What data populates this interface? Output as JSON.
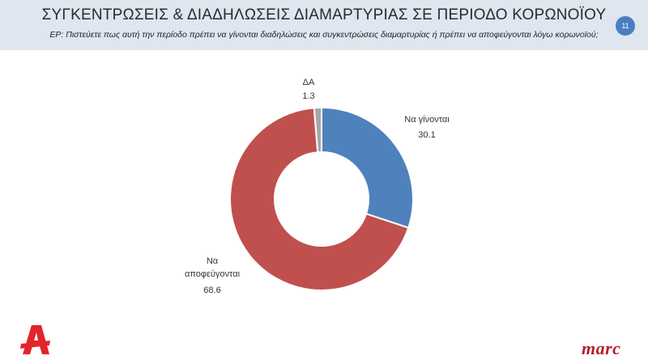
{
  "header": {
    "title": "ΣΥΓΚΕΝΤΡΩΣΕΙΣ & ΔΙΑΔΗΛΩΣΕΙΣ ΔΙΑΜΑΡΤΥΡΙΑΣ ΣΕ ΠΕΡΙΟΔΟ ΚΟΡΩΝΟΪΟΥ",
    "question": "ΕΡ: Πιστεύετε πως αυτή την περίοδο πρέπει να γίνονται διαδηλώσεις και συγκεντρώσεις διαμαρτυρίας ή πρέπει να αποφεύγονται λόγω κορωνοϊού;",
    "page_number": "11"
  },
  "chart_data": {
    "type": "pie",
    "donut": true,
    "slices": [
      {
        "label": "Να γίνονται",
        "value": 30.1,
        "value_label": "30.1",
        "color": "#4f81bd"
      },
      {
        "label": "Να αποφεύγονται",
        "value": 68.6,
        "value_label": "68.6",
        "color": "#c0504d"
      },
      {
        "label": "ΔΑ",
        "value": 1.3,
        "value_label": "1.3",
        "color": "#a6a6a6"
      }
    ]
  },
  "logos": {
    "left": {
      "icon": "alpha-tv-logo",
      "color": "#e3242b"
    },
    "right": {
      "text": "marc",
      "color": "#b51f2e"
    }
  }
}
